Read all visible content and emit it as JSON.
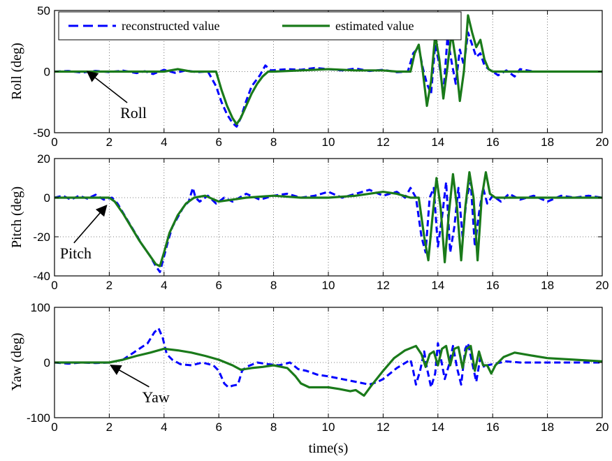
{
  "chart_data": [
    {
      "type": "line",
      "ylabel": "Roll (deg)",
      "xlabel": "",
      "xlim": [
        0,
        20
      ],
      "ylim": [
        -50,
        50
      ],
      "xticks": [
        0,
        2,
        4,
        6,
        8,
        10,
        12,
        14,
        16,
        18,
        20
      ],
      "yticks": [
        -50,
        0,
        50
      ],
      "grid": true,
      "legend": {
        "placement": "top-left",
        "entries": [
          "reconstructed value",
          "estimated value"
        ]
      },
      "annotation": {
        "text": "Roll",
        "arrow_to": [
          1.2,
          0
        ],
        "text_at": [
          2.4,
          -38
        ]
      },
      "series": [
        {
          "name": "reconstructed value",
          "color": "#0000ff",
          "style": "dashed",
          "x": [
            0,
            0.5,
            1,
            1.5,
            2,
            2.5,
            3,
            3.3,
            3.6,
            4,
            4.4,
            4.8,
            5.2,
            5.6,
            5.9,
            6.1,
            6.3,
            6.5,
            6.65,
            6.8,
            7,
            7.2,
            7.5,
            7.7,
            7.9,
            8.5,
            9,
            9.5,
            10,
            10.5,
            11,
            11.5,
            12,
            12.5,
            12.9,
            13.1,
            13.3,
            13.45,
            13.6,
            13.75,
            13.9,
            14.05,
            14.2,
            14.35,
            14.5,
            14.65,
            14.8,
            14.95,
            15.1,
            15.25,
            15.4,
            15.55,
            15.7,
            15.85,
            16,
            16.2,
            16.5,
            16.8,
            17,
            17.5,
            18,
            19,
            20
          ],
          "y": [
            0,
            0.5,
            -0.8,
            0.6,
            -0.4,
            0.8,
            -1.2,
            0.3,
            -2,
            1.5,
            -1,
            1,
            -0.5,
            0.2,
            -12,
            -25,
            -35,
            -42,
            -45,
            -38,
            -24,
            -12,
            -3,
            5,
            1,
            2,
            1.5,
            3,
            2,
            1,
            2.5,
            0.5,
            1.5,
            -0.5,
            0,
            15,
            20,
            3,
            -10,
            -18,
            22,
            6,
            -18,
            28,
            8,
            -10,
            18,
            5,
            32,
            22,
            12,
            15,
            5,
            2,
            0,
            -3,
            1,
            -4,
            2,
            0,
            0,
            0,
            0
          ]
        },
        {
          "name": "estimated value",
          "color": "#1a7a1a",
          "style": "solid",
          "x": [
            0,
            1,
            2,
            3,
            4,
            4.5,
            5,
            5.5,
            5.9,
            6.1,
            6.3,
            6.5,
            6.65,
            6.8,
            7,
            7.2,
            7.4,
            7.6,
            7.8,
            8,
            9,
            10,
            11,
            12,
            12.5,
            13,
            13.15,
            13.3,
            13.45,
            13.6,
            13.75,
            13.9,
            14.05,
            14.2,
            14.35,
            14.5,
            14.65,
            14.8,
            14.95,
            15.1,
            15.25,
            15.4,
            15.55,
            15.7,
            15.85,
            16,
            16.2,
            16.5,
            17,
            18,
            19,
            20
          ],
          "y": [
            0,
            0,
            0,
            0,
            0,
            2,
            0,
            0,
            0,
            -15,
            -28,
            -38,
            -43,
            -38,
            -28,
            -18,
            -10,
            -4,
            0,
            0,
            1,
            2,
            1,
            1,
            0,
            0,
            15,
            22,
            0,
            -28,
            -8,
            30,
            10,
            -22,
            4,
            32,
            10,
            -24,
            0,
            46,
            32,
            20,
            26,
            10,
            2,
            0,
            0,
            0,
            0,
            0,
            0,
            0
          ]
        }
      ]
    },
    {
      "type": "line",
      "ylabel": "Pitch (deg)",
      "xlabel": "",
      "xlim": [
        0,
        20
      ],
      "ylim": [
        -40,
        20
      ],
      "xticks": [
        0,
        2,
        4,
        6,
        8,
        10,
        12,
        14,
        16,
        18,
        20
      ],
      "yticks": [
        -40,
        -20,
        0,
        20
      ],
      "grid": true,
      "annotation": {
        "text": "Pitch",
        "arrow_to": [
          1.9,
          -4
        ],
        "text_at": [
          0.2,
          -31
        ]
      },
      "series": [
        {
          "name": "reconstructed value",
          "color": "#0000ff",
          "style": "dashed",
          "x": [
            0,
            0.3,
            0.6,
            0.9,
            1.2,
            1.5,
            1.8,
            2.1,
            2.3,
            2.6,
            2.9,
            3.2,
            3.5,
            3.7,
            3.85,
            4,
            4.15,
            4.3,
            4.5,
            4.7,
            4.9,
            5.05,
            5.15,
            5.3,
            5.6,
            5.9,
            6.2,
            6.5,
            7,
            7.5,
            8,
            8.5,
            9,
            9.5,
            10,
            10.5,
            11,
            11.5,
            12,
            12.5,
            12.8,
            13,
            13.2,
            13.4,
            13.55,
            13.7,
            13.85,
            14,
            14.15,
            14.3,
            14.45,
            14.6,
            14.75,
            14.9,
            15.05,
            15.2,
            15.35,
            15.5,
            15.65,
            15.8,
            16,
            16.3,
            16.6,
            17,
            17.5,
            18,
            18.5,
            19,
            19.5,
            20
          ],
          "y": [
            0,
            1,
            -1,
            1,
            -0.5,
            1.5,
            -1,
            0,
            -3,
            -10,
            -17,
            -24,
            -30,
            -35,
            -38,
            -30,
            -22,
            -15,
            -10,
            -5,
            -2,
            5,
            0,
            -2,
            1,
            -3,
            0,
            -2,
            2,
            -1,
            1,
            2,
            0,
            1,
            3,
            0,
            2,
            4,
            1,
            3,
            0,
            5,
            0,
            -20,
            -28,
            0,
            5,
            -25,
            -10,
            8,
            -28,
            -15,
            5,
            -20,
            0,
            8,
            -25,
            -8,
            5,
            -3,
            1,
            -2,
            2,
            -1,
            1,
            -2,
            1,
            0,
            1,
            0
          ]
        },
        {
          "name": "estimated value",
          "color": "#1a7a1a",
          "style": "solid",
          "x": [
            0,
            1,
            2,
            2.2,
            2.5,
            2.8,
            3.1,
            3.4,
            3.7,
            3.85,
            4,
            4.2,
            4.5,
            4.8,
            5.1,
            5.5,
            6,
            7,
            8,
            9,
            10,
            11,
            12,
            12.5,
            13,
            13.3,
            13.5,
            13.65,
            13.8,
            13.95,
            14.1,
            14.25,
            14.4,
            14.55,
            14.7,
            14.85,
            15,
            15.15,
            15.3,
            15.45,
            15.6,
            15.75,
            15.9,
            16.1,
            16.5,
            17,
            18,
            19,
            20
          ],
          "y": [
            0,
            0,
            0,
            -2,
            -8,
            -15,
            -22,
            -28,
            -34,
            -35,
            -28,
            -18,
            -9,
            -3,
            0,
            1,
            -2,
            0,
            1,
            0,
            0,
            1,
            3,
            2,
            0,
            0,
            -20,
            -32,
            -10,
            10,
            -5,
            -33,
            -8,
            12,
            -5,
            -32,
            -5,
            13,
            0,
            -32,
            0,
            13,
            2,
            0,
            0,
            0,
            0,
            0,
            0
          ]
        }
      ]
    },
    {
      "type": "line",
      "ylabel": "Yaw (deg)",
      "xlabel": "time(s)",
      "xlim": [
        0,
        20
      ],
      "ylim": [
        -100,
        100
      ],
      "xticks": [
        0,
        2,
        4,
        6,
        8,
        10,
        12,
        14,
        16,
        18,
        20
      ],
      "yticks": [
        -100,
        0,
        100
      ],
      "grid": true,
      "annotation": {
        "text": "Yaw",
        "arrow_to": [
          2.05,
          -5
        ],
        "text_at": [
          3.2,
          -72
        ]
      },
      "series": [
        {
          "name": "reconstructed value",
          "color": "#0000ff",
          "style": "dashed",
          "x": [
            0,
            0.5,
            1,
            1.5,
            2,
            2.5,
            2.8,
            3.1,
            3.4,
            3.65,
            3.8,
            3.95,
            4.1,
            4.3,
            4.6,
            5,
            5.4,
            5.8,
            6,
            6.2,
            6.35,
            6.5,
            6.7,
            6.85,
            7,
            7.4,
            7.8,
            8.2,
            8.6,
            8.9,
            9.2,
            9.6,
            10,
            10.5,
            11,
            11.5,
            11.8,
            12,
            12.5,
            13,
            13.1,
            13.2,
            13.35,
            13.5,
            13.6,
            13.75,
            13.9,
            14,
            14.1,
            14.25,
            14.4,
            14.55,
            14.7,
            14.85,
            15,
            15.1,
            15.25,
            15.4,
            15.55,
            15.7,
            15.8,
            16,
            16.5,
            17,
            18,
            19,
            20
          ],
          "y": [
            0,
            -2,
            0,
            -1,
            0,
            5,
            15,
            25,
            35,
            55,
            62,
            45,
            15,
            5,
            -3,
            -5,
            0,
            -5,
            -15,
            -38,
            -45,
            -42,
            -40,
            -15,
            -8,
            0,
            -3,
            -5,
            0,
            -12,
            -15,
            -22,
            -25,
            -30,
            -35,
            -40,
            -35,
            -30,
            -10,
            5,
            -15,
            -40,
            -15,
            20,
            -10,
            -45,
            -20,
            35,
            10,
            -30,
            -5,
            30,
            -10,
            -40,
            25,
            35,
            0,
            -35,
            10,
            -10,
            -5,
            -3,
            2,
            0,
            0,
            0,
            0
          ]
        },
        {
          "name": "estimated value",
          "color": "#1a7a1a",
          "style": "solid",
          "x": [
            0,
            1,
            2,
            2.5,
            3,
            3.5,
            4,
            4.5,
            5,
            5.5,
            6,
            6.5,
            6.8,
            7.2,
            7.6,
            8,
            8.5,
            8.8,
            9,
            9.3,
            9.6,
            10,
            10.4,
            10.8,
            11,
            11.3,
            11.6,
            12,
            12.4,
            12.8,
            13.2,
            13.4,
            13.55,
            13.7,
            13.85,
            14,
            14.15,
            14.3,
            14.45,
            14.6,
            14.75,
            14.9,
            15.05,
            15.2,
            15.35,
            15.5,
            15.65,
            15.8,
            15.95,
            16.1,
            16.4,
            16.8,
            17.5,
            18,
            19,
            20
          ],
          "y": [
            0,
            0,
            0,
            5,
            12,
            18,
            25,
            22,
            18,
            12,
            5,
            -5,
            -13,
            -10,
            -8,
            -5,
            -10,
            -25,
            -38,
            -45,
            -45,
            -45,
            -48,
            -52,
            -50,
            -60,
            -40,
            -15,
            8,
            22,
            30,
            15,
            -8,
            15,
            20,
            -5,
            25,
            30,
            -5,
            25,
            28,
            -10,
            25,
            30,
            -15,
            20,
            -5,
            -5,
            -20,
            -5,
            10,
            18,
            12,
            8,
            5,
            2
          ]
        }
      ]
    }
  ]
}
